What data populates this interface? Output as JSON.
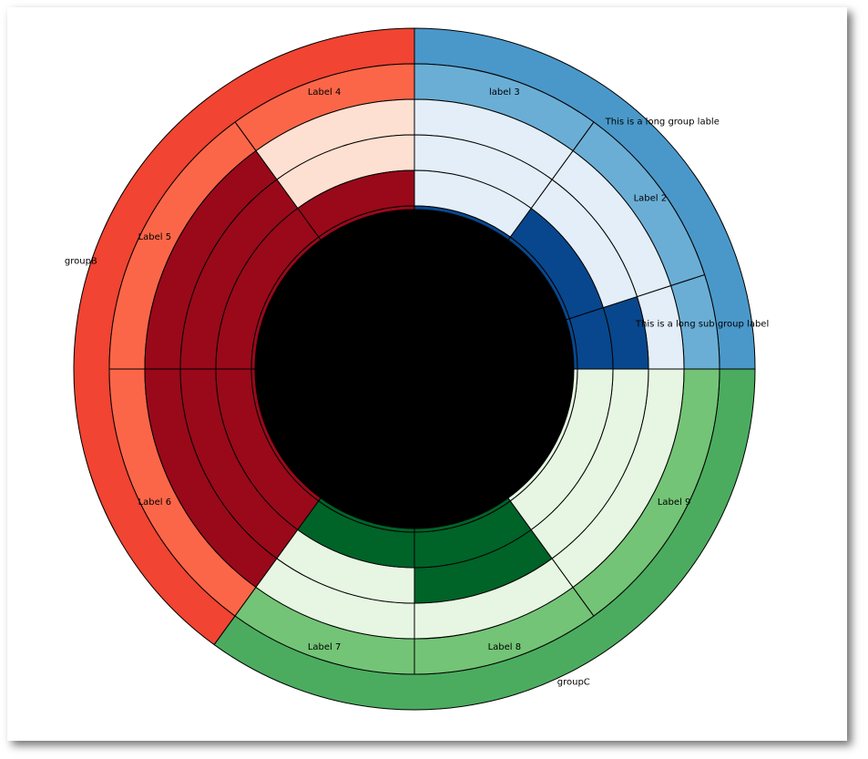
{
  "chart_data": {
    "type": "nested-donut",
    "title": "",
    "legend": "none",
    "start_angle_deg": 0,
    "direction": "counterclockwise",
    "center_color": "#000000",
    "edge_color": "#000000",
    "groups": [
      {
        "label": "This is a long group lable",
        "value": 25,
        "color": "#4a98c9",
        "subgroups": [
          {
            "label": "This is a long sub group label",
            "value": 5,
            "color": "#6aaed6",
            "detail_colors": [
              "#e3eef9",
              "#08478d",
              "#08478d",
              "#08478d"
            ]
          },
          {
            "label": "Label 2",
            "value": 10,
            "color": "#6aaed6",
            "detail_colors": [
              "#e3eef9",
              "#e3eef9",
              "#08478d",
              "#08478d"
            ]
          },
          {
            "label": "label 3",
            "value": 10,
            "color": "#6aaed6",
            "detail_colors": [
              "#e3eef9",
              "#e3eef9",
              "#e3eef9",
              "#08478d"
            ]
          }
        ]
      },
      {
        "label": "groupB",
        "value": 40,
        "color": "#f14432",
        "subgroups": [
          {
            "label": "Label 4",
            "value": 10,
            "color": "#fc6648",
            "detail_colors": [
              "#fee0d2",
              "#fee0d2",
              "#99091a",
              "#99091a"
            ]
          },
          {
            "label": "Label 5",
            "value": 15,
            "color": "#fc6648",
            "detail_colors": [
              "#99091a",
              "#99091a",
              "#99091a",
              "#99091a"
            ]
          },
          {
            "label": "Label 6",
            "value": 15,
            "color": "#fc6648",
            "detail_colors": [
              "#99091a",
              "#99091a",
              "#99091a",
              "#99091a"
            ]
          }
        ]
      },
      {
        "label": "groupC",
        "value": 35,
        "color": "#4bac5f",
        "subgroups": [
          {
            "label": "Label 7",
            "value": 10,
            "color": "#73c476",
            "detail_colors": [
              "#e7f6e3",
              "#e7f6e3",
              "#006328",
              "#006328"
            ]
          },
          {
            "label": "Label 8",
            "value": 10,
            "color": "#73c476",
            "detail_colors": [
              "#e7f6e3",
              "#006328",
              "#006328",
              "#006328"
            ]
          },
          {
            "label": "Label 9",
            "value": 15,
            "color": "#73c476",
            "detail_colors": [
              "#e7f6e3",
              "#e7f6e3",
              "#e7f6e3",
              "#e7f6e3"
            ]
          }
        ]
      }
    ]
  }
}
